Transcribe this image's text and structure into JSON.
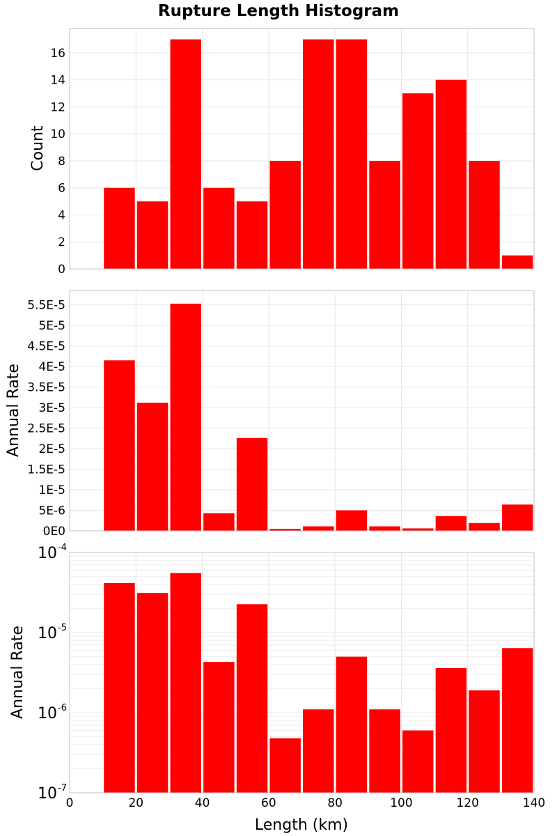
{
  "chart_data": [
    {
      "type": "bar",
      "title": "Rupture Length Histogram",
      "ylabel": "Count",
      "xlim": [
        0,
        140
      ],
      "ylim": [
        0,
        17.8
      ],
      "x_ticks": [
        0,
        20,
        40,
        60,
        80,
        100,
        120,
        140
      ],
      "y_ticks": [
        0,
        2,
        4,
        6,
        8,
        10,
        12,
        14,
        16
      ],
      "y_tick_labels": [
        "0",
        "2",
        "4",
        "6",
        "8",
        "10",
        "12",
        "14",
        "16"
      ],
      "grid": true,
      "bin_width": 10,
      "bins": [
        {
          "x": 15,
          "value": 6
        },
        {
          "x": 25,
          "value": 5
        },
        {
          "x": 35,
          "value": 17
        },
        {
          "x": 45,
          "value": 6
        },
        {
          "x": 55,
          "value": 5
        },
        {
          "x": 65,
          "value": 8
        },
        {
          "x": 75,
          "value": 17
        },
        {
          "x": 85,
          "value": 17
        },
        {
          "x": 95,
          "value": 8
        },
        {
          "x": 105,
          "value": 13
        },
        {
          "x": 115,
          "value": 14
        },
        {
          "x": 125,
          "value": 8
        },
        {
          "x": 135,
          "value": 1
        }
      ],
      "bar_color": "#ff0000"
    },
    {
      "type": "bar",
      "ylabel": "Annual Rate",
      "xlim": [
        0,
        140
      ],
      "ylim": [
        0,
        5.85e-05
      ],
      "y_ticks": [
        0,
        5e-06,
        1e-05,
        1.5e-05,
        2e-05,
        2.5e-05,
        3e-05,
        3.5e-05,
        4e-05,
        4.5e-05,
        5e-05,
        5.5e-05
      ],
      "y_tick_labels": [
        "0E0",
        "5E-6",
        "1E-5",
        "1.5E-5",
        "2E-5",
        "2.5E-5",
        "3E-5",
        "3.5E-5",
        "4E-5",
        "4.5E-5",
        "5E-5",
        "5.5E-5"
      ],
      "grid": true,
      "bin_width": 10,
      "bins": [
        {
          "x": 15,
          "value": 4.15e-05
        },
        {
          "x": 25,
          "value": 3.12e-05
        },
        {
          "x": 35,
          "value": 5.53e-05
        },
        {
          "x": 45,
          "value": 4.3e-06
        },
        {
          "x": 55,
          "value": 2.26e-05
        },
        {
          "x": 65,
          "value": 4.8e-07
        },
        {
          "x": 75,
          "value": 1.1e-06
        },
        {
          "x": 85,
          "value": 5e-06
        },
        {
          "x": 95,
          "value": 1.1e-06
        },
        {
          "x": 105,
          "value": 6e-07
        },
        {
          "x": 115,
          "value": 3.6e-06
        },
        {
          "x": 125,
          "value": 1.9e-06
        },
        {
          "x": 135,
          "value": 6.4e-06
        }
      ],
      "bar_color": "#ff0000"
    },
    {
      "type": "bar",
      "ylabel": "Annual Rate",
      "xlabel": "Length (km)",
      "yscale": "log",
      "xlim": [
        0,
        140
      ],
      "ylim": [
        1e-07,
        0.0001
      ],
      "x_ticks": [
        0,
        20,
        40,
        60,
        80,
        100,
        120,
        140
      ],
      "x_tick_labels": [
        "0",
        "20",
        "40",
        "60",
        "80",
        "100",
        "120",
        "140"
      ],
      "y_ticks": [
        1e-07,
        1e-06,
        1e-05,
        0.0001
      ],
      "y_tick_labels": [
        {
          "base": "10",
          "exp": "-7"
        },
        {
          "base": "10",
          "exp": "-6"
        },
        {
          "base": "10",
          "exp": "-5"
        },
        {
          "base": "10",
          "exp": "-4"
        }
      ],
      "grid": true,
      "bin_width": 10,
      "bins": [
        {
          "x": 15,
          "value": 4.15e-05
        },
        {
          "x": 25,
          "value": 3.12e-05
        },
        {
          "x": 35,
          "value": 5.53e-05
        },
        {
          "x": 45,
          "value": 4.3e-06
        },
        {
          "x": 55,
          "value": 2.26e-05
        },
        {
          "x": 65,
          "value": 4.8e-07
        },
        {
          "x": 75,
          "value": 1.1e-06
        },
        {
          "x": 85,
          "value": 5e-06
        },
        {
          "x": 95,
          "value": 1.1e-06
        },
        {
          "x": 105,
          "value": 6e-07
        },
        {
          "x": 115,
          "value": 3.6e-06
        },
        {
          "x": 125,
          "value": 1.9e-06
        },
        {
          "x": 135,
          "value": 6.4e-06
        }
      ],
      "bar_color": "#ff0000"
    }
  ]
}
